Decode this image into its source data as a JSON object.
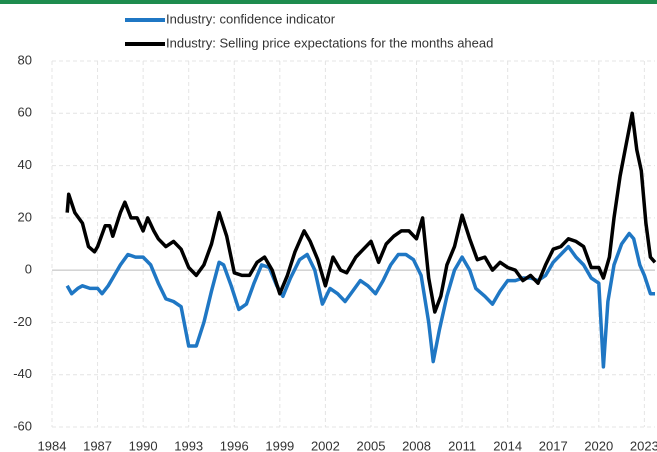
{
  "chart_data": {
    "type": "line",
    "series": [
      {
        "name": "Industry: confidence indicator",
        "color": "#1f77c4",
        "x": [
          1985,
          1985.3,
          1985.7,
          1986,
          1986.5,
          1987,
          1987.3,
          1987.7,
          1988,
          1988.5,
          1989,
          1989.5,
          1990,
          1990.5,
          1991,
          1991.5,
          1992,
          1992.5,
          1993,
          1993.5,
          1994,
          1994.5,
          1995,
          1995.3,
          1995.8,
          1996.3,
          1996.8,
          1997.3,
          1997.8,
          1998.3,
          1998.8,
          1999.2,
          1999.7,
          2000.3,
          2000.8,
          2001.3,
          2001.8,
          2002.3,
          2002.8,
          2003.3,
          2003.8,
          2004.3,
          2004.8,
          2005.3,
          2005.8,
          2006.3,
          2006.8,
          2007.3,
          2007.8,
          2008.3,
          2008.8,
          2009.1,
          2009.5,
          2010,
          2010.5,
          2011,
          2011.5,
          2011.9,
          2012.5,
          2013,
          2013.5,
          2014,
          2014.5,
          2015,
          2015.5,
          2016,
          2016.5,
          2017,
          2017.5,
          2018,
          2018.5,
          2019,
          2019.5,
          2020,
          2020.3,
          2020.6,
          2021,
          2021.5,
          2022,
          2022.3,
          2022.7,
          2023,
          2023.4,
          2023.7
        ],
        "values": [
          -6,
          -9,
          -7,
          -6,
          -7,
          -7,
          -9,
          -6,
          -3,
          2,
          6,
          5,
          5,
          2,
          -5,
          -11,
          -12,
          -14,
          -29,
          -29,
          -20,
          -8,
          3,
          2,
          -6,
          -15,
          -13,
          -5,
          2,
          1,
          -6,
          -10,
          -3,
          4,
          6,
          0,
          -13,
          -7,
          -9,
          -12,
          -8,
          -4,
          -6,
          -9,
          -4,
          2,
          6,
          6,
          4,
          -2,
          -20,
          -35,
          -23,
          -10,
          0,
          5,
          0,
          -7,
          -10,
          -13,
          -8,
          -4,
          -4,
          -3,
          -3,
          -4,
          -2,
          3,
          6,
          9,
          5,
          2,
          -3,
          -5,
          -37,
          -12,
          2,
          10,
          14,
          12,
          2,
          -2,
          -9,
          -9
        ]
      },
      {
        "name": "Industry: Selling price expectations for the months ahead",
        "color": "#000000",
        "x": [
          1985,
          1985.1,
          1985.5,
          1986,
          1986.4,
          1986.8,
          1987,
          1987.5,
          1987.8,
          1988,
          1988.5,
          1988.8,
          1989.2,
          1989.6,
          1990,
          1990.3,
          1990.7,
          1991,
          1991.5,
          1992,
          1992.5,
          1993,
          1993.5,
          1994,
          1994.5,
          1995,
          1995.5,
          1996,
          1996.5,
          1997,
          1997.5,
          1998,
          1998.5,
          1999,
          1999.5,
          2000,
          2000.6,
          2001,
          2001.5,
          2002,
          2002.5,
          2003,
          2003.4,
          2004,
          2004.5,
          2005,
          2005.5,
          2006,
          2006.5,
          2007,
          2007.5,
          2008,
          2008.4,
          2008.8,
          2009.2,
          2009.6,
          2010,
          2010.5,
          2011,
          2011.5,
          2012,
          2012.5,
          2013,
          2013.5,
          2014,
          2014.5,
          2015,
          2015.5,
          2016,
          2016.5,
          2017,
          2017.5,
          2018,
          2018.5,
          2019,
          2019.5,
          2020,
          2020.3,
          2020.7,
          2021,
          2021.4,
          2021.8,
          2022.2,
          2022.5,
          2022.8,
          2023.1,
          2023.4,
          2023.7
        ],
        "values": [
          22,
          29,
          22,
          18,
          9,
          7,
          9,
          17,
          17,
          13,
          22,
          26,
          20,
          20,
          15,
          20,
          15,
          12,
          9,
          11,
          8,
          1,
          -2,
          2,
          10,
          22,
          13,
          -1,
          -2,
          -2,
          3,
          5,
          0,
          -9,
          -2,
          7,
          15,
          11,
          4,
          -6,
          5,
          0,
          -1,
          5,
          8,
          11,
          3,
          10,
          13,
          15,
          15,
          12,
          20,
          -3,
          -16,
          -10,
          2,
          9,
          21,
          12,
          4,
          5,
          0,
          3,
          1,
          0,
          -4,
          -2,
          -5,
          2,
          8,
          9,
          12,
          11,
          9,
          1,
          1,
          -3,
          5,
          20,
          36,
          48,
          60,
          46,
          38,
          18,
          5,
          3
        ]
      }
    ],
    "xlim": [
      1984,
      2023.7
    ],
    "xticks": [
      1984,
      1987,
      1990,
      1993,
      1996,
      1999,
      2002,
      2005,
      2008,
      2011,
      2014,
      2017,
      2020,
      2023
    ],
    "ylim": [
      -60,
      80
    ],
    "yticks": [
      -60,
      -40,
      -20,
      0,
      20,
      40,
      60,
      80
    ],
    "grid": true,
    "negative_tick_color": "#c00000"
  }
}
